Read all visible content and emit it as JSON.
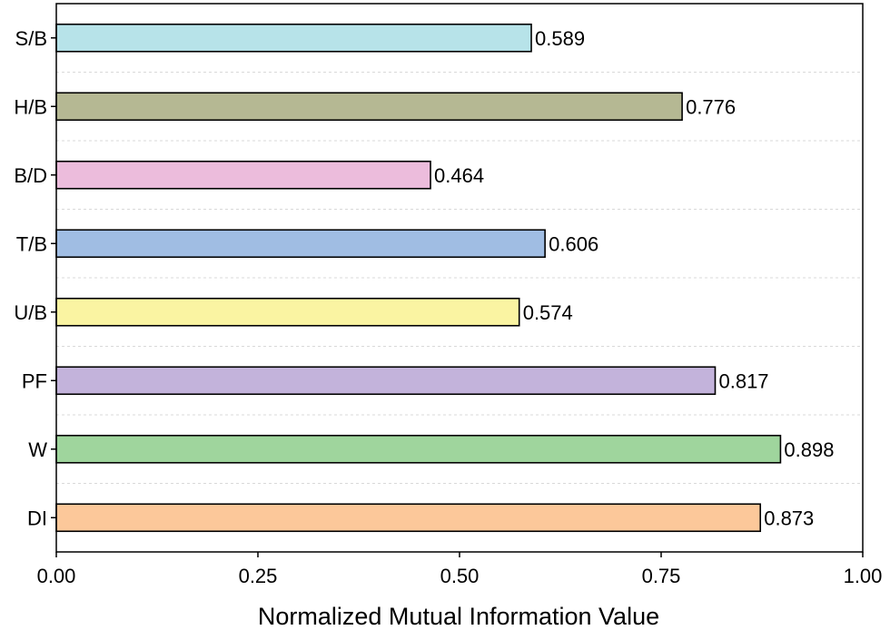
{
  "chart_data": {
    "type": "bar",
    "orientation": "horizontal",
    "title": "",
    "xlabel": "Normalized Mutual Information Value",
    "ylabel": "",
    "xlim": [
      0,
      1
    ],
    "x_ticks": [
      0.0,
      0.25,
      0.5,
      0.75,
      1.0
    ],
    "x_tick_labels": [
      "0.00",
      "0.25",
      "0.50",
      "0.75",
      "1.00"
    ],
    "grid": "horizontal dashed between categories",
    "categories": [
      "S/B",
      "H/B",
      "B/D",
      "T/B",
      "U/B",
      "PF",
      "W",
      "DI"
    ],
    "values": [
      0.589,
      0.776,
      0.464,
      0.606,
      0.574,
      0.817,
      0.898,
      0.873
    ],
    "value_labels": [
      "0.589",
      "0.776",
      "0.464",
      "0.606",
      "0.574",
      "0.817",
      "0.898",
      "0.873"
    ],
    "colors": [
      "#b7e3e9",
      "#b5b893",
      "#ecbcdc",
      "#a0bde3",
      "#faf4a2",
      "#c3b3db",
      "#9fd59d",
      "#fcc89a"
    ]
  }
}
